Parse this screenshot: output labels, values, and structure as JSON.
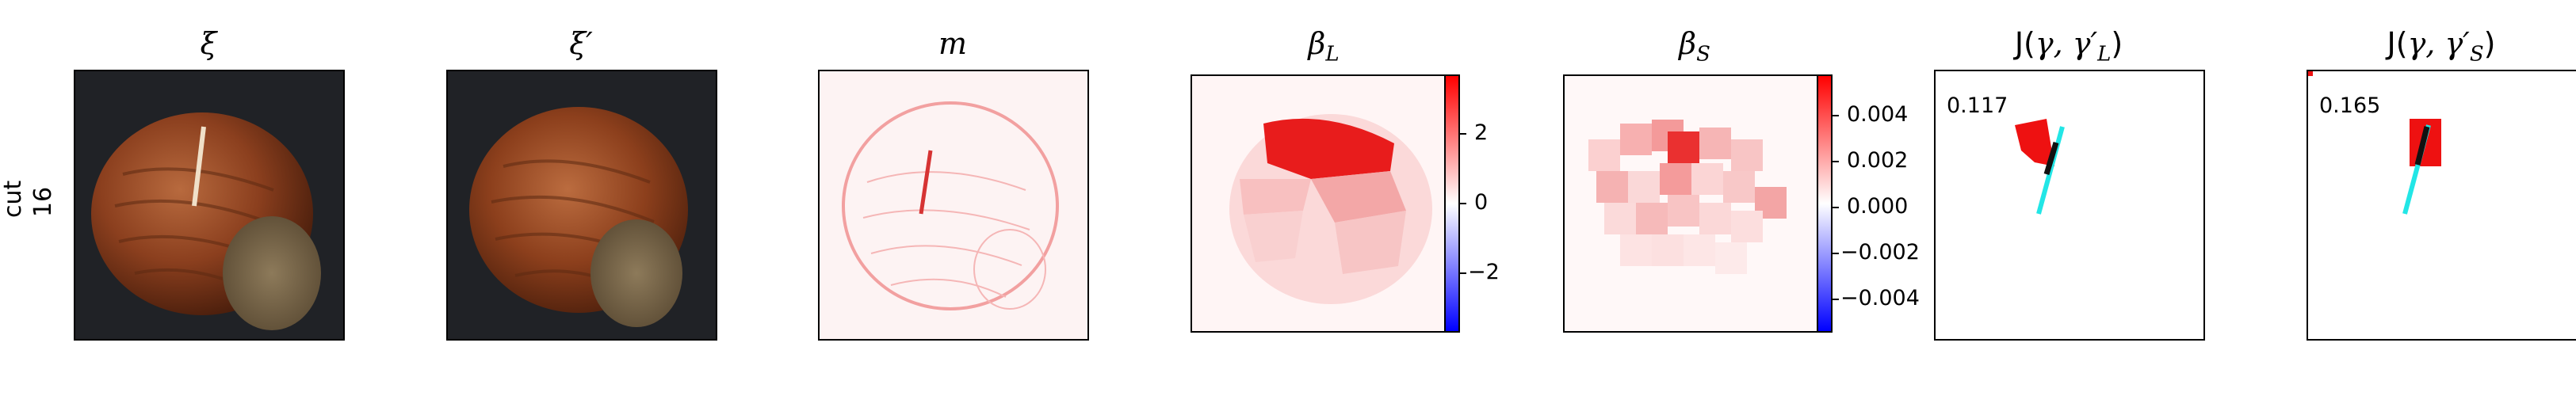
{
  "row_label": {
    "line1": "cut",
    "line2": "16"
  },
  "panels": {
    "xi": {
      "title": "ξ"
    },
    "xi_prime": {
      "title": "ξ′"
    },
    "m": {
      "title": "m"
    },
    "beta_L": {
      "title": "β",
      "sub": "L",
      "colorbar": {
        "ticks": [
          "2",
          "0",
          "−2"
        ],
        "low": "#0000ff",
        "mid": "#ffffff",
        "high": "#ff0000"
      }
    },
    "beta_S": {
      "title": "β",
      "sub": "S",
      "colorbar": {
        "ticks": [
          "0.004",
          "0.002",
          "0.000",
          "−0.002",
          "−0.004"
        ],
        "low": "#0000ff",
        "mid": "#ffffff",
        "high": "#ff0000"
      }
    },
    "J_L": {
      "title_prefix": "J(",
      "title_args": "γ, γ′",
      "title_sub": "L",
      "title_suffix": ")",
      "score": "0.117"
    },
    "J_S": {
      "title_prefix": "J(",
      "title_args": "γ, γ′",
      "title_sub": "S",
      "title_suffix": ")",
      "score": "0.165"
    }
  }
}
